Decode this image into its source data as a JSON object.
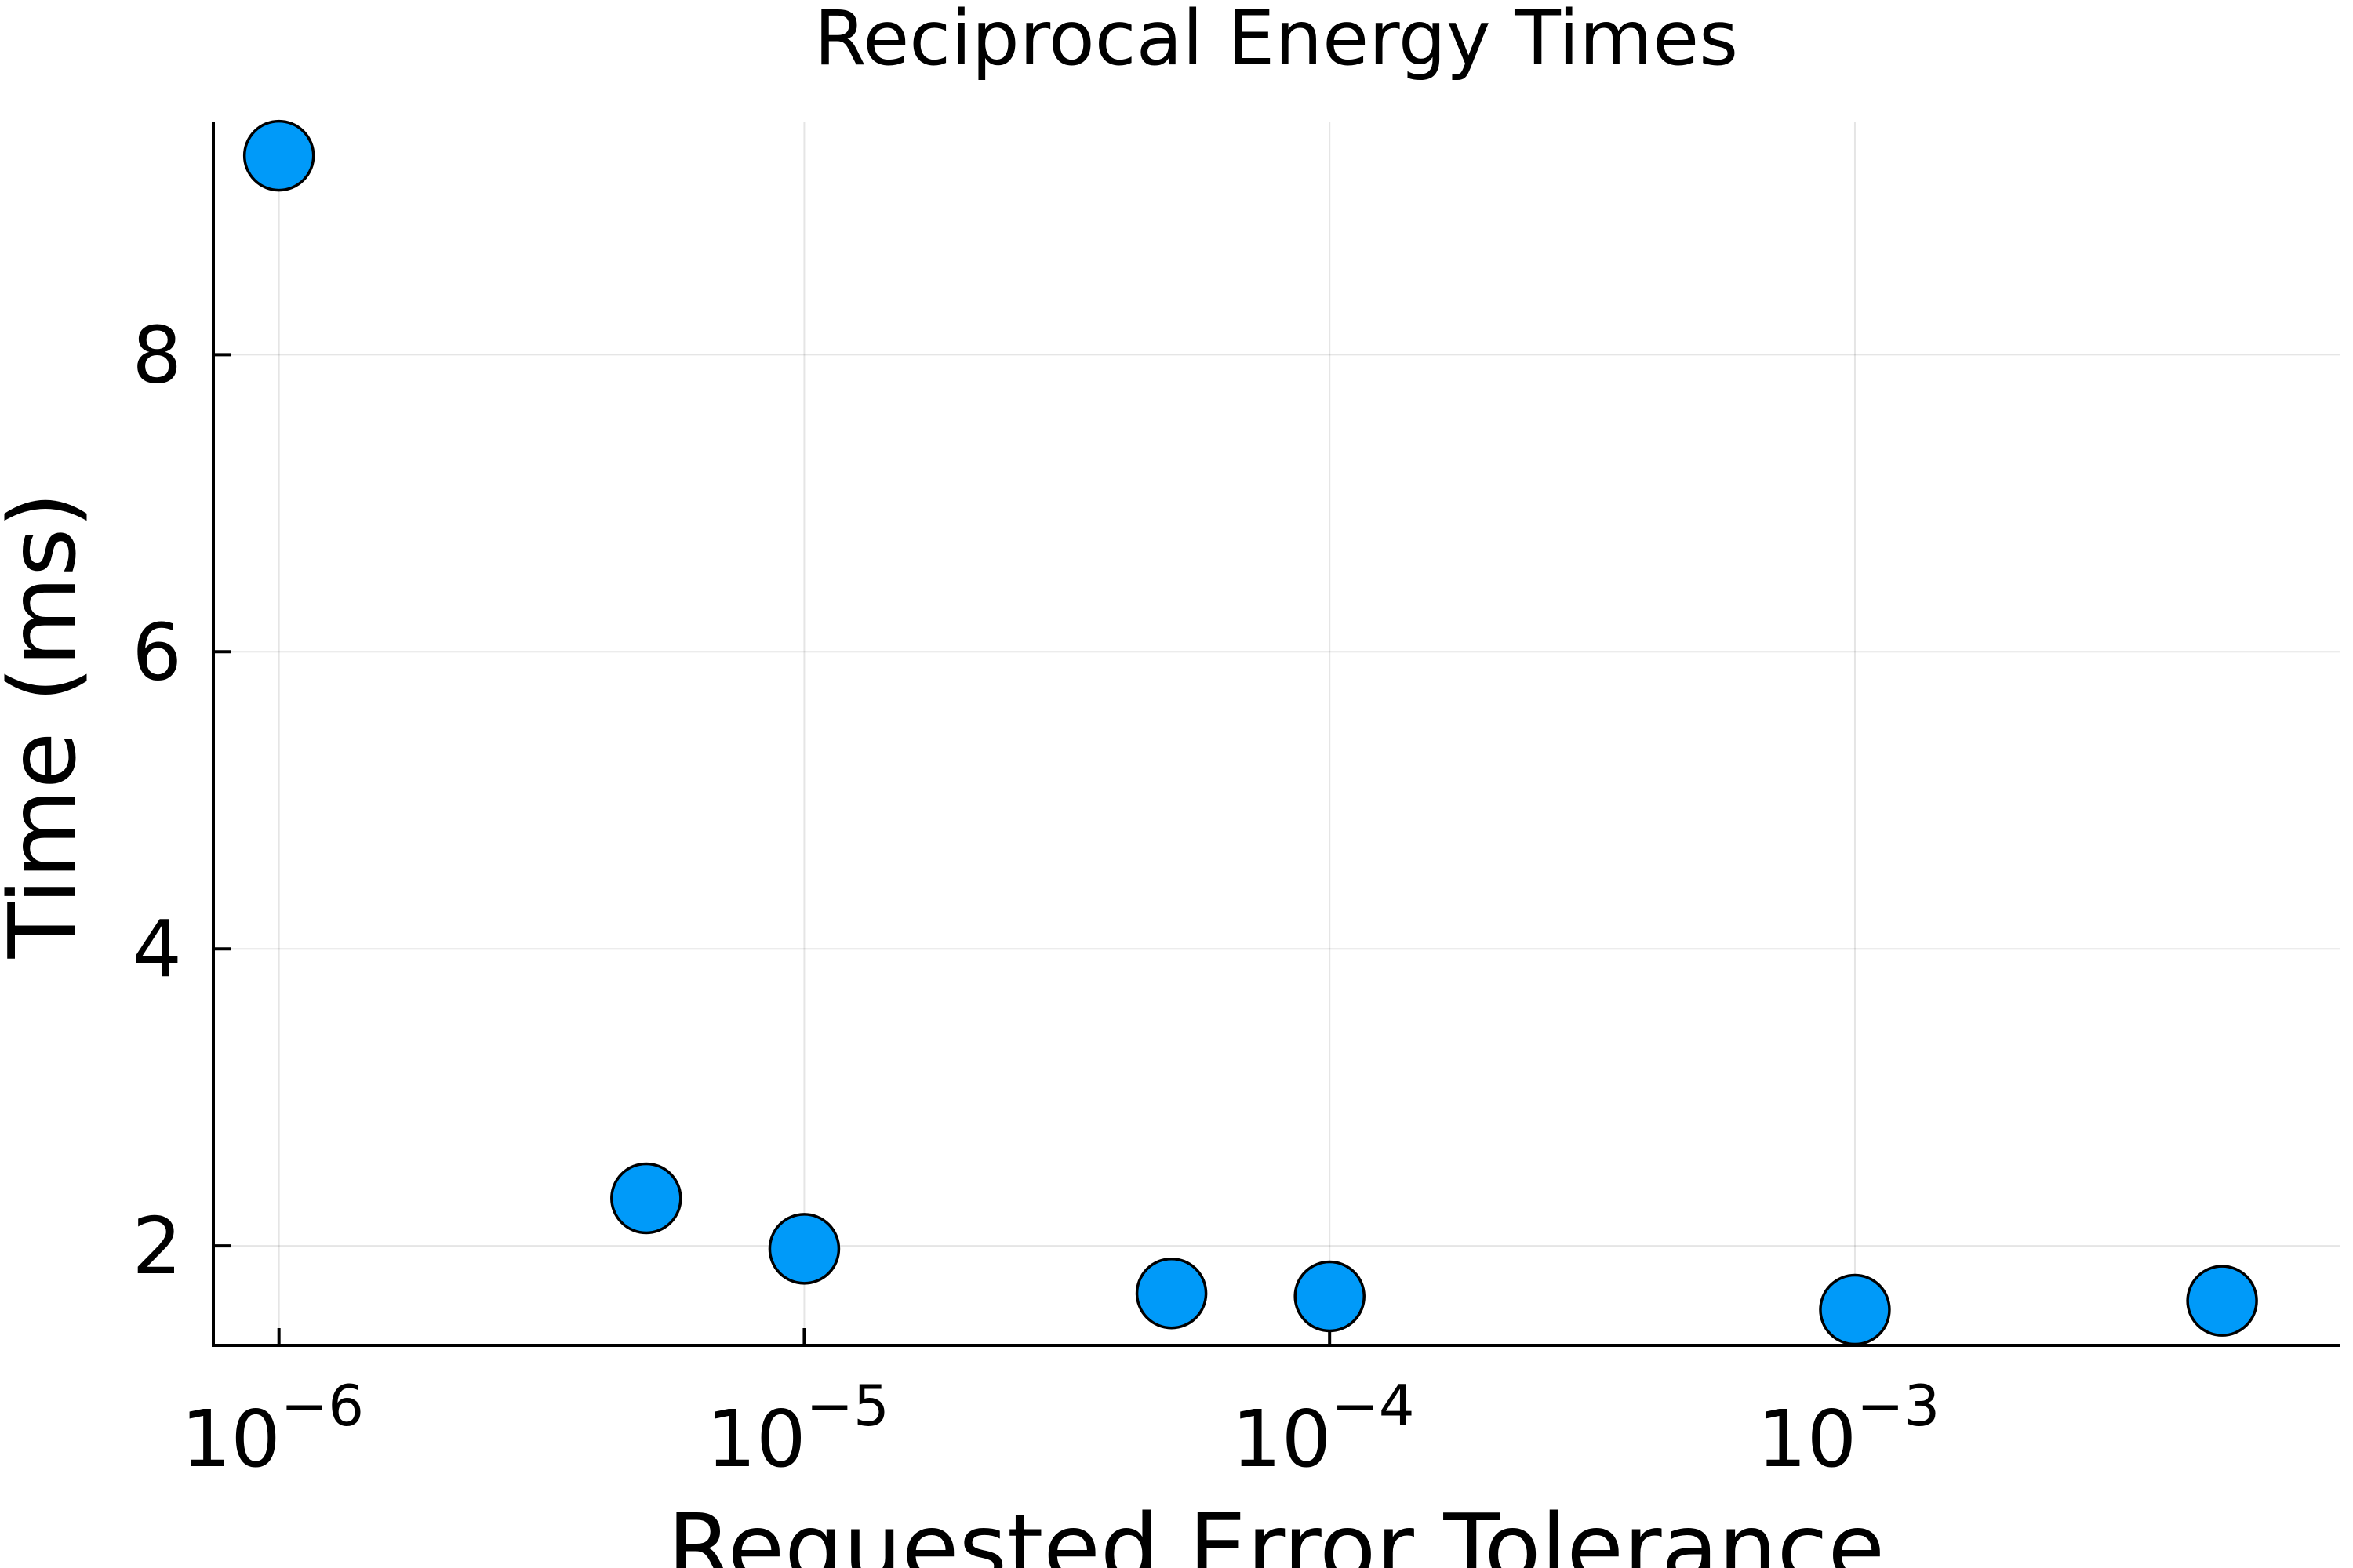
{
  "chart_data": {
    "type": "scatter",
    "title": "Reciprocal Energy Times",
    "xlabel": "Requested Error Tolerance",
    "ylabel": "Time (ms)",
    "xscale": "log10",
    "xlim": [
      7.5e-07,
      0.0084
    ],
    "ylim": [
      1.33,
      9.57
    ],
    "xticks": [
      {
        "value": 1e-06,
        "base": "10",
        "exp": "−6"
      },
      {
        "value": 1e-05,
        "base": "10",
        "exp": "−5"
      },
      {
        "value": 0.0001,
        "base": "10",
        "exp": "−4"
      },
      {
        "value": 0.001,
        "base": "10",
        "exp": "−3"
      }
    ],
    "yticks": [
      {
        "value": 2,
        "label": "2"
      },
      {
        "value": 4,
        "label": "4"
      },
      {
        "value": 6,
        "label": "6"
      },
      {
        "value": 8,
        "label": "8"
      }
    ],
    "grid": true,
    "legend": "none",
    "marker_color": "#009af9",
    "points": [
      {
        "x": 1e-06,
        "y": 9.34
      },
      {
        "x": 5e-06,
        "y": 2.32
      },
      {
        "x": 1e-05,
        "y": 1.98
      },
      {
        "x": 5e-05,
        "y": 1.68
      },
      {
        "x": 0.0001,
        "y": 1.66
      },
      {
        "x": 0.001,
        "y": 1.57
      },
      {
        "x": 0.005,
        "y": 1.63
      }
    ]
  }
}
